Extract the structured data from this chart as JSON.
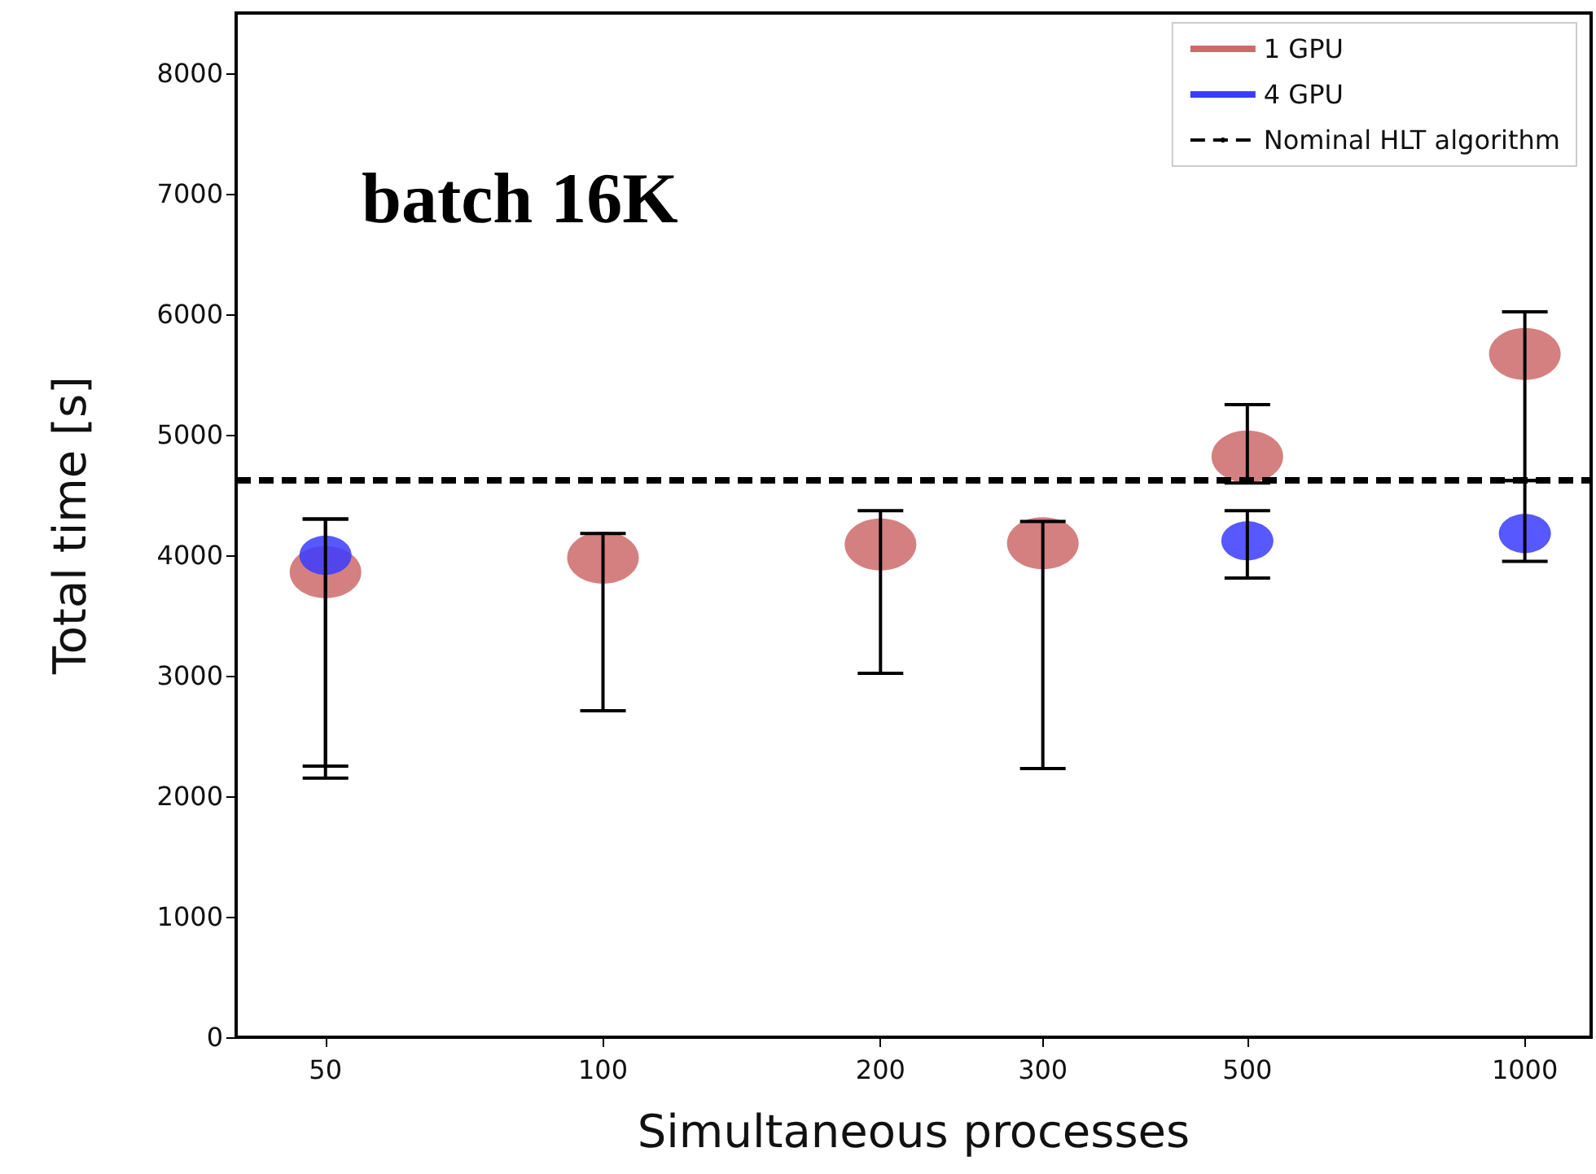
{
  "chart_data": {
    "type": "scatter",
    "xlabel": "Simultaneous processes",
    "ylabel": "Total time [s]",
    "annotations": [
      "batch 16K"
    ],
    "log": "x",
    "xlim": [
      40,
      1180
    ],
    "xticks": [
      50,
      100,
      200,
      300,
      500,
      1000
    ],
    "ylim": [
      0,
      8500
    ],
    "yticks": [
      0,
      1000,
      2000,
      3000,
      4000,
      5000,
      6000,
      7000,
      8000
    ],
    "series": [
      {
        "name": "1 GPU",
        "color": "#cd6a6a",
        "x": [
          50,
          100,
          200,
          300,
          500,
          1000
        ],
        "values": [
          3860,
          3980,
          4090,
          4100,
          4820,
          5670
        ],
        "errors": [
          [
            2150,
            4300
          ],
          [
            2710,
            4180
          ],
          [
            3020,
            4370
          ],
          [
            2230,
            4280
          ],
          [
            4600,
            5250
          ],
          [
            4620,
            6020
          ]
        ]
      },
      {
        "name": "4 GPU",
        "color": "#3b3bff",
        "x": [
          50,
          500,
          1000
        ],
        "values": [
          4000,
          4120,
          4180
        ],
        "errors": [
          [
            2250,
            4300
          ],
          [
            3810,
            4370
          ],
          [
            3950,
            4620
          ]
        ]
      }
    ],
    "ref_lines": [
      {
        "axis": "y",
        "value": 4620,
        "label": "Nominal HLT algorithm",
        "color": "#000000",
        "line_style": "dashed"
      }
    ],
    "legend": "top right",
    "grid": false
  }
}
